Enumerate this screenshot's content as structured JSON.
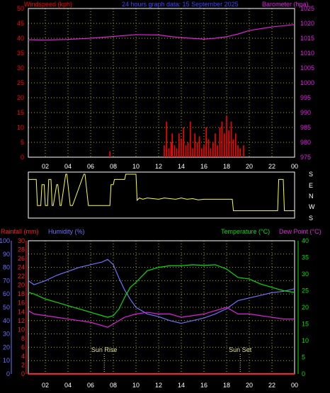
{
  "header": {
    "left": "Windspeed (kph)",
    "center": "24 hours graph data: 15 September 2025",
    "right": "Barometer (hpa)"
  },
  "x_ticks": [
    "02",
    "04",
    "06",
    "08",
    "10",
    "12",
    "14",
    "16",
    "18",
    "20",
    "22",
    "00"
  ],
  "x_start_hour": 0.5,
  "colors": {
    "background": "#000000",
    "plot_border": "#ffffff",
    "grid": "#b0b000",
    "windspeed": "#ff0000",
    "barometer": "#e020e0",
    "wind_direction": "#ffff33",
    "humidity": "#7070ff",
    "temperature": "#00e000",
    "dewpoint": "#e020e0",
    "rainfall": "#ff2020",
    "annotation": "#e0e0a0"
  },
  "compass_labels": [
    "S",
    "E",
    "N",
    "W",
    "S"
  ],
  "bottom": {
    "rain_label": "Rainfall (mm)",
    "humidity_label": "Humidity (%)",
    "temp_label": "Temperature (°C)",
    "dew_label": "Dew Point (°C)",
    "sunrise_label": "Sun Rise",
    "sunset_label": "Sun Set",
    "sunrise_hour": 7.2,
    "sunset_hour": 19.2
  },
  "chart_data": [
    {
      "type": "line",
      "title": "24 hours graph data: 15 September 2025",
      "ylabel_left": "Windspeed (kph)",
      "ylabel_right": "Barometer (hpa)",
      "left_axis": {
        "min": 0,
        "max": 50,
        "step": 5,
        "ticks": [
          "0",
          "5",
          "10",
          "15",
          "20",
          "25",
          "30",
          "35",
          "40",
          "45",
          "50"
        ]
      },
      "right_axis": {
        "min": 975,
        "max": 1025,
        "step": 5,
        "ticks": [
          "975",
          "980",
          "985",
          "990",
          "995",
          "1000",
          "1005",
          "1010",
          "1015",
          "1020",
          "1025"
        ]
      },
      "grid": true,
      "series": [
        {
          "name": "Barometer (hpa)",
          "axis": "right",
          "x": [
            0.5,
            2,
            4,
            6,
            8,
            10,
            12,
            13,
            14,
            16,
            17,
            18,
            19,
            20,
            22,
            24
          ],
          "y": [
            1014.5,
            1014.4,
            1014.6,
            1015,
            1015.6,
            1016.2,
            1016.1,
            1015.6,
            1015.2,
            1014.7,
            1015,
            1015.5,
            1016.4,
            1017.6,
            1018.8,
            1019.6
          ]
        },
        {
          "name": "Windspeed (kph)",
          "axis": "left",
          "style": "bars",
          "x": [
            7.7,
            12.5,
            12.7,
            12.9,
            13.1,
            13.2,
            13.4,
            13.6,
            13.8,
            14.0,
            14.2,
            14.4,
            14.6,
            14.8,
            15.0,
            15.2,
            15.4,
            15.6,
            15.8,
            16.0,
            16.2,
            16.4,
            16.6,
            16.8,
            17.0,
            17.2,
            17.4,
            17.6,
            17.8,
            18.0,
            18.2,
            18.4,
            18.6,
            18.8,
            19.0,
            19.2,
            19.5
          ],
          "y": [
            2,
            4,
            12,
            3,
            5,
            8,
            4,
            3,
            8,
            6,
            10,
            4,
            5,
            12,
            3,
            8,
            5,
            7,
            3,
            4,
            10,
            6,
            3,
            5,
            8,
            4,
            10,
            12,
            8,
            14,
            9,
            12,
            6,
            8,
            4,
            3,
            4
          ]
        }
      ]
    },
    {
      "type": "line",
      "title": "Wind direction",
      "yticks": [
        "S",
        "E",
        "N",
        "W",
        "S"
      ],
      "series": [
        {
          "name": "Wind direction",
          "x": [
            0.5,
            1.2,
            1.3,
            1.6,
            1.7,
            1.9,
            2.0,
            2.2,
            2.3,
            2.5,
            2.6,
            2.7,
            3.0,
            3.1,
            3.3,
            3.4,
            3.8,
            3.9,
            4.2,
            4.4,
            5.4,
            5.5,
            5.8,
            5.9,
            7.7,
            7.8,
            8.0,
            8.1,
            9.0,
            9.1,
            10.0,
            10.1,
            10.3,
            10.6,
            11.0,
            12.0,
            12.5,
            13.0,
            13.5,
            14.0,
            14.5,
            15.0,
            15.5,
            16.0,
            16.5,
            17.0,
            18.0,
            18.5,
            18.6,
            20.0,
            21.0,
            22.0,
            22.5,
            22.6,
            23.0,
            23.1,
            24.0
          ],
          "y": [
            135,
            135,
            270,
            270,
            90,
            90,
            270,
            270,
            135,
            135,
            270,
            270,
            90,
            90,
            270,
            270,
            180,
            180,
            270,
            270,
            180,
            180,
            270,
            270,
            270,
            90,
            90,
            135,
            135,
            180,
            180,
            315,
            290,
            300,
            290,
            300,
            290,
            295,
            300,
            290,
            300,
            295,
            305,
            300,
            300,
            300,
            300,
            300,
            225,
            225,
            225,
            225,
            225,
            135,
            135,
            225,
            225
          ]
        }
      ]
    },
    {
      "type": "line",
      "title": "",
      "ylabel_rain": "Rainfall (mm)",
      "ylabel_humidity": "Humidity (%)",
      "ylabel_temp": "Temperature (°C)",
      "ylabel_dew": "Dew Point (°C)",
      "humidity_axis": {
        "min": 0,
        "max": 100,
        "ticks": [
          "0",
          "10",
          "20",
          "30",
          "40",
          "50",
          "60",
          "70",
          "80",
          "90",
          "100"
        ]
      },
      "rain_axis": {
        "min": 0,
        "max": 30,
        "ticks": [
          "0",
          "2",
          "4",
          "6",
          "8",
          "10",
          "12",
          "14",
          "16",
          "18",
          "20",
          "22",
          "24",
          "26",
          "28",
          "30"
        ]
      },
      "temp_axis": {
        "min": 0,
        "max": 40,
        "ticks": [
          "0",
          "5",
          "10",
          "15",
          "20",
          "25",
          "30",
          "35",
          "40"
        ]
      },
      "grid": true,
      "series": [
        {
          "name": "Humidity (%)",
          "axis": "humidity",
          "x": [
            0.5,
            1,
            2,
            3,
            4,
            5,
            6,
            7,
            7.5,
            8,
            8.5,
            9,
            9.5,
            10,
            11,
            12,
            13,
            14,
            15,
            16,
            17,
            18,
            19,
            20,
            21,
            22,
            23,
            24
          ],
          "y": [
            70,
            67,
            70,
            74,
            77,
            80,
            82,
            84,
            86,
            82,
            72,
            63,
            56,
            50,
            45,
            43,
            40,
            38,
            40,
            42,
            45,
            49,
            55,
            57,
            59,
            61,
            62,
            64
          ]
        },
        {
          "name": "Temperature (°C)",
          "axis": "temp",
          "x": [
            0.5,
            1,
            2,
            3,
            4,
            5,
            6,
            7,
            7.5,
            8,
            8.5,
            9,
            9.5,
            10,
            11,
            12,
            13,
            14,
            15,
            16,
            17,
            18,
            19,
            20,
            21,
            22,
            23,
            24
          ],
          "y": [
            24.5,
            24,
            22.5,
            21.5,
            20.5,
            19.5,
            18.5,
            17.5,
            17,
            17.5,
            19.5,
            23,
            26,
            27.5,
            31,
            32,
            32.5,
            32.5,
            32.8,
            32.6,
            32.8,
            31.5,
            29,
            28.5,
            27,
            26,
            25,
            24.5
          ]
        },
        {
          "name": "Dew Point (°C)",
          "axis": "temp",
          "x": [
            0.5,
            1,
            2,
            3,
            4,
            5,
            6,
            7,
            7.5,
            8,
            9,
            10,
            11,
            12,
            13,
            14,
            15,
            16,
            17,
            18,
            19,
            20,
            21,
            22,
            23,
            24
          ],
          "y": [
            19,
            18,
            17.5,
            17,
            16.5,
            16,
            15.5,
            14.5,
            14,
            15,
            17,
            18,
            18.5,
            18,
            18,
            17,
            17.5,
            18,
            19,
            20,
            18,
            18,
            17.5,
            17,
            16.5,
            16.5
          ]
        },
        {
          "name": "Rainfall (mm)",
          "axis": "rain",
          "x": [
            0.5,
            24
          ],
          "y": [
            0,
            0
          ]
        }
      ]
    }
  ]
}
